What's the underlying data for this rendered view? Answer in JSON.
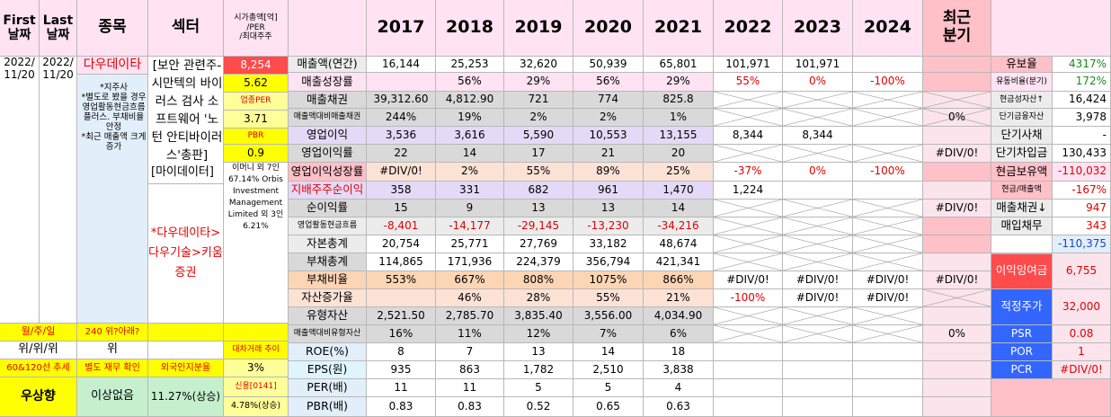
{
  "header": {
    "first_date_label": "First\n날짜",
    "last_date_label": "Last\n날짜",
    "stock_label": "종목",
    "sector_label": "섹터",
    "cap_per_label": "시가총액[억]\n/PER\n/최대주주",
    "years": [
      "2017",
      "2018",
      "2019",
      "2020",
      "2021",
      "2022",
      "2023",
      "2024"
    ],
    "recent_quarter_label": "최근\n분기"
  },
  "left": {
    "first_date": "2022/\n11/20",
    "last_date": "2022/\n11/20",
    "stock_name": "다우데이타",
    "stock_notes": "*지주사\n*별도로 봤을 경우 영업활동현금흐름 플러스. 부채비율 안정\n*최근 매출액 크게 증가",
    "sector_text": "[보안 관련주-시만텍의 바이러스 검사 소프트웨어 '노턴 안티바이러스'총판]",
    "sector_text2": "[마이데이터]",
    "sector_relation": "*다우데이타>다우기술>키움증권",
    "market_cap": "8,254",
    "per": "5.62",
    "industry_per_label": "업종PER",
    "industry_per": "3.71",
    "pbr_label": "PBR",
    "pbr": "0.9",
    "shareholder": "이머니 외 7인 67.14% Orbis Investment Management Limited 외 3인 6.21%"
  },
  "bottom_left": {
    "period_label": "월/주/일",
    "position_label": "240 위?아래?",
    "period_value": "위/위/위",
    "position_value": "위",
    "ma_label": "60&120선 추세",
    "separate_label": "별도 재무 확인",
    "trend_value": "우상향",
    "separate_value": "이상없음",
    "big_trade_label": "대차거래 추이",
    "foreign_label": "외국인지분율",
    "foreign_value": "3%",
    "credit_label": "신용[0141]",
    "credit_value": "11.27%(상승)",
    "credit_value2": "4.78%(상승)"
  },
  "rows": [
    {
      "label": "매출액(연간)",
      "values": [
        "16,144",
        "25,253",
        "32,620",
        "50,939",
        "65,801",
        "101,971",
        "101,971",
        ""
      ],
      "recent": ""
    },
    {
      "label": "매출성장률",
      "values": [
        "",
        "56%",
        "29%",
        "56%",
        "29%",
        "55%",
        "0%",
        "-100%"
      ],
      "recent": ""
    },
    {
      "label": "매출채권",
      "values": [
        "39,312.60",
        "4,812.90",
        "721",
        "774",
        "825.8",
        "",
        "",
        ""
      ],
      "recent": ""
    },
    {
      "label": "매출액대비매출채권",
      "values": [
        "244%",
        "19%",
        "2%",
        "2%",
        "1%",
        "",
        "",
        ""
      ],
      "recent": "0%"
    },
    {
      "label": "영업이익",
      "values": [
        "3,536",
        "3,616",
        "5,590",
        "10,553",
        "13,155",
        "8,344",
        "8,344",
        ""
      ],
      "recent": ""
    },
    {
      "label": "영업이익률",
      "values": [
        "22",
        "14",
        "17",
        "21",
        "20",
        "",
        "",
        ""
      ],
      "recent": "#DIV/0!"
    },
    {
      "label": "영업이익성장률",
      "values": [
        "#DIV/0!",
        "2%",
        "55%",
        "89%",
        "25%",
        "-37%",
        "0%",
        "-100%"
      ],
      "recent": ""
    },
    {
      "label": "지배주주순이익",
      "values": [
        "358",
        "331",
        "682",
        "961",
        "1,470",
        "1,224",
        "",
        ""
      ],
      "recent": ""
    },
    {
      "label": "순이익률",
      "values": [
        "15",
        "9",
        "13",
        "13",
        "14",
        "",
        "",
        ""
      ],
      "recent": "#DIV/0!"
    },
    {
      "label": "영업활동현금흐름",
      "values": [
        "-8,401",
        "-14,177",
        "-29,145",
        "-13,230",
        "-34,216",
        "",
        "",
        ""
      ],
      "recent": ""
    },
    {
      "label": "자본총계",
      "values": [
        "20,754",
        "25,771",
        "27,769",
        "33,182",
        "48,674",
        "",
        "",
        ""
      ],
      "recent": ""
    },
    {
      "label": "부채총계",
      "values": [
        "114,865",
        "171,936",
        "224,379",
        "356,794",
        "421,341",
        "",
        "",
        ""
      ],
      "recent": ""
    },
    {
      "label": "부채비율",
      "values": [
        "553%",
        "667%",
        "808%",
        "1075%",
        "866%",
        "#DIV/0!",
        "#DIV/0!",
        "#DIV/0!"
      ],
      "recent": "#DIV/0!"
    },
    {
      "label": "자산증가율",
      "values": [
        "",
        "46%",
        "28%",
        "55%",
        "21%",
        "-100%",
        "#DIV/0!",
        "#DIV/0!"
      ],
      "recent": ""
    },
    {
      "label": "유형자산",
      "values": [
        "2,521.50",
        "2,785.70",
        "3,835.40",
        "3,556.00",
        "4,034.90",
        "",
        "",
        ""
      ],
      "recent": ""
    },
    {
      "label": "매출액대비유형자산",
      "values": [
        "16%",
        "11%",
        "12%",
        "7%",
        "6%",
        "",
        "",
        ""
      ],
      "recent": "0%"
    },
    {
      "label": "ROE(%)",
      "values": [
        "8",
        "7",
        "13",
        "14",
        "18",
        "",
        "",
        ""
      ],
      "recent": ""
    },
    {
      "label": "EPS(원)",
      "values": [
        "935",
        "863",
        "1,782",
        "2,510",
        "3,838",
        "",
        "",
        ""
      ],
      "recent": ""
    },
    {
      "label": "PER(배)",
      "values": [
        "11",
        "11",
        "5",
        "5",
        "4",
        "",
        "",
        ""
      ],
      "recent": ""
    },
    {
      "label": "PBR(배)",
      "values": [
        "0.83",
        "0.83",
        "0.52",
        "0.65",
        "0.63",
        "",
        "",
        ""
      ],
      "recent": ""
    }
  ],
  "right": [
    {
      "label": "유보율",
      "value": "4317%"
    },
    {
      "label": "유동비율(분기)",
      "value": "172%"
    },
    {
      "label": "현금성자산↑",
      "value": "16,424"
    },
    {
      "label": "단기금융자산",
      "value": "3,978"
    },
    {
      "label": "단기사채",
      "value": "-"
    },
    {
      "label": "단기차입금",
      "value": "130,433"
    },
    {
      "label": "현금보유액",
      "value": "-110,032"
    },
    {
      "label": "현금/매출액",
      "value": "-167%"
    },
    {
      "label": "매출채권↓",
      "value": "947"
    },
    {
      "label": "매입채무",
      "value": "343"
    },
    {
      "label": "",
      "value": "-110,375"
    }
  ],
  "right_bottom": {
    "retained_label": "이익잉여금",
    "retained_value": "6,755",
    "fair_price_label": "적정주가",
    "fair_price_value": "32,000",
    "psr_label": "PSR",
    "psr_value": "0.08",
    "por_label": "POR",
    "por_value": "1",
    "pcr_label": "PCR",
    "pcr_value": "#DIV/0!"
  }
}
